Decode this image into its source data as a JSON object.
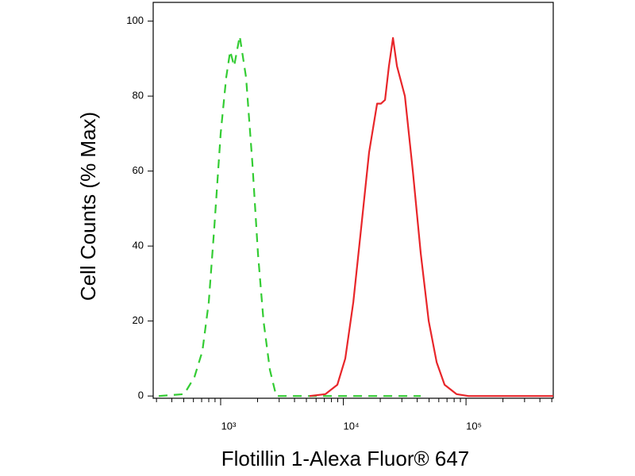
{
  "chart_data": {
    "type": "line",
    "xlabel": "Flotillin 1-Alexa Fluor® 647",
    "ylabel": "Cell Counts (% Max)",
    "xscale": "log",
    "xlim": [
      282,
      514000
    ],
    "xticks": [
      {
        "value": 1000,
        "label": "10³"
      },
      {
        "value": 10000,
        "label": "10⁴"
      },
      {
        "value": 100000,
        "label": "10⁵"
      }
    ],
    "xminorticks": [
      300,
      400,
      500,
      600,
      700,
      800,
      900,
      2000,
      3000,
      4000,
      5000,
      6000,
      7000,
      8000,
      9000,
      20000,
      30000,
      40000,
      50000,
      60000,
      70000,
      80000,
      90000,
      200000,
      300000,
      400000,
      500000
    ],
    "ylim": [
      -0.6,
      105
    ],
    "yticks": [
      0,
      20,
      40,
      60,
      80,
      100
    ],
    "series": [
      {
        "color": "#33cc33",
        "line_style": "dashed",
        "x": [
          313,
          504,
          611,
          710,
          800,
          888,
          1000,
          1110,
          1196,
          1288,
          1430,
          1611,
          1815,
          2014,
          2237,
          2520,
          2838,
          6160,
          42760
        ],
        "values": [
          0,
          0.5,
          5,
          12,
          25,
          45,
          70,
          85,
          92,
          88,
          96,
          85,
          62,
          38,
          20,
          7,
          0,
          0,
          0
        ]
      },
      {
        "color": "#e8262a",
        "line_style": "solid",
        "x": [
          5310,
          7150,
          8940,
          10380,
          12050,
          13990,
          16230,
          18840,
          20290,
          21880,
          23550,
          25410,
          27350,
          31750,
          36840,
          42760,
          49630,
          57640,
          66830,
          83580,
          104500,
          514000
        ],
        "values": [
          0,
          0.5,
          3,
          10,
          25,
          45,
          65,
          78,
          78,
          79,
          88,
          95.5,
          88,
          80,
          60,
          38,
          20,
          9,
          3,
          0.5,
          0,
          0
        ]
      }
    ]
  }
}
